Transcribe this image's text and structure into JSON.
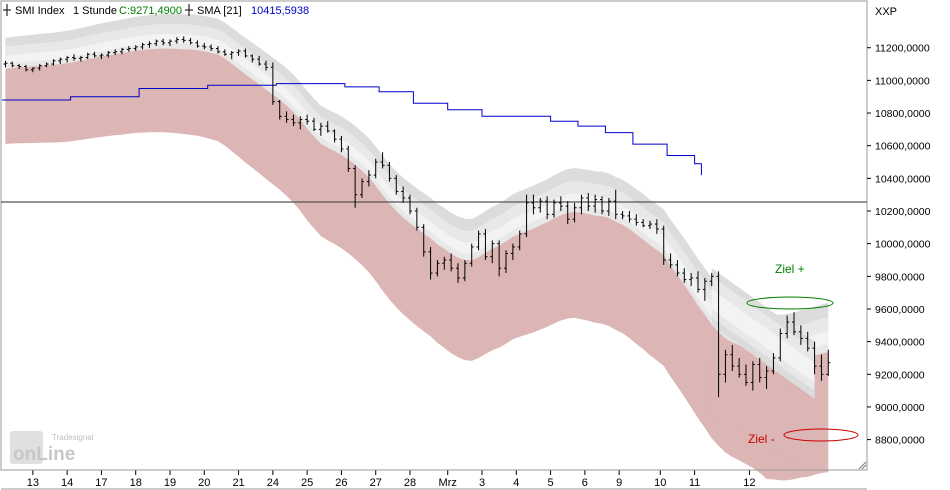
{
  "header": {
    "instrument": "SMI Index",
    "interval": "1 Stunde",
    "close_label": "C:9271,4900",
    "indicator": "SMA [21]",
    "indicator_value": "10415,5938",
    "symbol": "XXP"
  },
  "colors": {
    "close": "#008000",
    "sma": "#0000cc",
    "band_red": "#dcb5b5",
    "band_gray_outer": "#dcdcdc",
    "band_gray_mid": "#e8e8e8",
    "band_gray_inner": "#f3f3f3",
    "target_plus": "#008000",
    "target_minus": "#cc0000"
  },
  "watermark": {
    "brand_line1": "Tradesignal",
    "brand_line2": "onLine"
  },
  "chart_data": {
    "type": "bar",
    "title": "SMI Index 1 Stunde",
    "ylim": [
      8620,
      11480
    ],
    "xlim": [
      0,
      126
    ],
    "y_ticks": [
      "11200,0000",
      "11000,0000",
      "10800,0000",
      "10600,0000",
      "10400,0000",
      "10200,0000",
      "10000,0000",
      "9800,0000",
      "9600,0000",
      "9400,0000",
      "9200,0000",
      "9000,0000",
      "8800,0000"
    ],
    "y_tick_values": [
      11200,
      11000,
      10800,
      10600,
      10400,
      10200,
      10000,
      9800,
      9600,
      9400,
      9200,
      9000,
      8800
    ],
    "x_ticks": [
      {
        "label": "13",
        "x": 4.5
      },
      {
        "label": "14",
        "x": 9.5
      },
      {
        "label": "17",
        "x": 14.5
      },
      {
        "label": "18",
        "x": 19.5
      },
      {
        "label": "19",
        "x": 24.5
      },
      {
        "label": "20",
        "x": 29.5
      },
      {
        "label": "21",
        "x": 34.5
      },
      {
        "label": "24",
        "x": 39.5
      },
      {
        "label": "25",
        "x": 44.5
      },
      {
        "label": "26",
        "x": 49.5
      },
      {
        "label": "27",
        "x": 54.5
      },
      {
        "label": "28",
        "x": 59.5
      },
      {
        "label": "Mrz",
        "x": 65
      },
      {
        "label": "3",
        "x": 70
      },
      {
        "label": "4",
        "x": 75
      },
      {
        "label": "5",
        "x": 80
      },
      {
        "label": "6",
        "x": 85
      },
      {
        "label": "9",
        "x": 90
      },
      {
        "label": "10",
        "x": 96
      },
      {
        "label": "11",
        "x": 101
      },
      {
        "label": "12",
        "x": 109
      }
    ],
    "horizontal_line": 10255,
    "bars": [
      [
        11100,
        11120,
        11080,
        11105
      ],
      [
        11105,
        11115,
        11080,
        11090
      ],
      [
        11090,
        11100,
        11070,
        11085
      ],
      [
        11085,
        11095,
        11055,
        11065
      ],
      [
        11065,
        11080,
        11050,
        11075
      ],
      [
        11075,
        11100,
        11060,
        11090
      ],
      [
        11090,
        11110,
        11080,
        11100
      ],
      [
        11100,
        11130,
        11090,
        11120
      ],
      [
        11120,
        11140,
        11100,
        11130
      ],
      [
        11130,
        11150,
        11110,
        11140
      ],
      [
        11140,
        11160,
        11120,
        11135
      ],
      [
        11135,
        11150,
        11115,
        11140
      ],
      [
        11140,
        11170,
        11130,
        11160
      ],
      [
        11160,
        11175,
        11140,
        11150
      ],
      [
        11150,
        11165,
        11130,
        11155
      ],
      [
        11155,
        11180,
        11140,
        11170
      ],
      [
        11170,
        11190,
        11155,
        11175
      ],
      [
        11175,
        11200,
        11160,
        11190
      ],
      [
        11190,
        11210,
        11175,
        11195
      ],
      [
        11195,
        11215,
        11180,
        11205
      ],
      [
        11205,
        11230,
        11190,
        11220
      ],
      [
        11220,
        11240,
        11200,
        11225
      ],
      [
        11225,
        11250,
        11210,
        11240
      ],
      [
        11240,
        11255,
        11215,
        11230
      ],
      [
        11230,
        11250,
        11210,
        11240
      ],
      [
        11240,
        11265,
        11225,
        11250
      ],
      [
        11250,
        11270,
        11230,
        11245
      ],
      [
        11245,
        11260,
        11220,
        11230
      ],
      [
        11230,
        11245,
        11200,
        11210
      ],
      [
        11210,
        11230,
        11190,
        11205
      ],
      [
        11205,
        11220,
        11180,
        11195
      ],
      [
        11195,
        11210,
        11165,
        11175
      ],
      [
        11175,
        11190,
        11150,
        11160
      ],
      [
        11160,
        11180,
        11130,
        11170
      ],
      [
        11170,
        11190,
        11150,
        11180
      ],
      [
        11180,
        11195,
        11140,
        11150
      ],
      [
        11150,
        11160,
        11110,
        11130
      ],
      [
        11130,
        11150,
        11090,
        11100
      ],
      [
        11100,
        11120,
        11060,
        11080
      ],
      [
        11080,
        11110,
        10850,
        10870
      ],
      [
        10870,
        10880,
        10760,
        10780
      ],
      [
        10780,
        10810,
        10740,
        10760
      ],
      [
        10760,
        10790,
        10720,
        10740
      ],
      [
        10740,
        10780,
        10700,
        10760
      ],
      [
        10760,
        10790,
        10730,
        10750
      ],
      [
        10750,
        10770,
        10690,
        10700
      ],
      [
        10700,
        10740,
        10660,
        10720
      ],
      [
        10720,
        10750,
        10680,
        10690
      ],
      [
        10690,
        10700,
        10620,
        10640
      ],
      [
        10640,
        10660,
        10560,
        10580
      ],
      [
        10580,
        10600,
        10440,
        10460
      ],
      [
        10460,
        10480,
        10220,
        10300
      ],
      [
        10300,
        10400,
        10280,
        10380
      ],
      [
        10380,
        10450,
        10350,
        10420
      ],
      [
        10420,
        10520,
        10400,
        10500
      ],
      [
        10500,
        10560,
        10460,
        10480
      ],
      [
        10480,
        10500,
        10380,
        10400
      ],
      [
        10400,
        10420,
        10300,
        10320
      ],
      [
        10320,
        10350,
        10250,
        10280
      ],
      [
        10280,
        10300,
        10180,
        10200
      ],
      [
        10200,
        10220,
        10080,
        10100
      ],
      [
        10100,
        10120,
        9920,
        9950
      ],
      [
        9950,
        9980,
        9780,
        9820
      ],
      [
        9820,
        9900,
        9800,
        9880
      ],
      [
        9880,
        9920,
        9840,
        9900
      ],
      [
        9900,
        9940,
        9830,
        9850
      ],
      [
        9850,
        9880,
        9760,
        9790
      ],
      [
        9790,
        9900,
        9770,
        9880
      ],
      [
        9880,
        10000,
        9860,
        9980
      ],
      [
        9980,
        10080,
        9960,
        10060
      ],
      [
        10060,
        10090,
        9900,
        9920
      ],
      [
        9920,
        10020,
        9880,
        10000
      ],
      [
        10000,
        10020,
        9800,
        9850
      ],
      [
        9850,
        9960,
        9820,
        9940
      ],
      [
        9940,
        10000,
        9900,
        9980
      ],
      [
        9980,
        10080,
        9960,
        10060
      ],
      [
        10060,
        10300,
        10040,
        10250
      ],
      [
        10250,
        10300,
        10180,
        10220
      ],
      [
        10220,
        10280,
        10190,
        10260
      ],
      [
        10260,
        10290,
        10150,
        10180
      ],
      [
        10180,
        10270,
        10160,
        10250
      ],
      [
        10250,
        10290,
        10200,
        10230
      ],
      [
        10230,
        10260,
        10120,
        10150
      ],
      [
        10150,
        10250,
        10130,
        10220
      ],
      [
        10220,
        10300,
        10180,
        10280
      ],
      [
        10280,
        10310,
        10200,
        10230
      ],
      [
        10230,
        10300,
        10190,
        10270
      ],
      [
        10270,
        10290,
        10180,
        10200
      ],
      [
        10200,
        10280,
        10170,
        10260
      ],
      [
        10260,
        10330,
        10150,
        10180
      ],
      [
        10180,
        10200,
        10150,
        10170
      ],
      [
        10170,
        10200,
        10130,
        10150
      ],
      [
        10150,
        10180,
        10110,
        10130
      ],
      [
        10130,
        10150,
        10100,
        10110
      ],
      [
        10110,
        10140,
        10090,
        10120
      ],
      [
        10120,
        10150,
        10060,
        10090
      ],
      [
        10090,
        10110,
        9870,
        9900
      ],
      [
        9900,
        9940,
        9850,
        9870
      ],
      [
        9870,
        9900,
        9800,
        9820
      ],
      [
        9820,
        9850,
        9760,
        9780
      ],
      [
        9780,
        9820,
        9740,
        9790
      ],
      [
        9790,
        9830,
        9700,
        9720
      ],
      [
        9720,
        9790,
        9650,
        9770
      ],
      [
        9770,
        9820,
        9740,
        9800
      ],
      [
        9800,
        9830,
        9060,
        9200
      ],
      [
        9200,
        9350,
        9150,
        9320
      ],
      [
        9320,
        9380,
        9220,
        9250
      ],
      [
        9250,
        9300,
        9180,
        9200
      ],
      [
        9200,
        9260,
        9130,
        9150
      ],
      [
        9150,
        9280,
        9100,
        9260
      ],
      [
        9260,
        9300,
        9150,
        9180
      ],
      [
        9180,
        9250,
        9110,
        9220
      ],
      [
        9220,
        9330,
        9200,
        9300
      ],
      [
        9300,
        9480,
        9280,
        9450
      ],
      [
        9450,
        9560,
        9420,
        9520
      ],
      [
        9520,
        9580,
        9440,
        9460
      ],
      [
        9460,
        9500,
        9380,
        9420
      ],
      [
        9420,
        9460,
        9340,
        9360
      ],
      [
        9360,
        9400,
        9200,
        9250
      ],
      [
        9250,
        9320,
        9160,
        9200
      ],
      [
        9200,
        9350,
        9190,
        9271
      ]
    ],
    "sma_steps": [
      [
        0,
        10880
      ],
      [
        10,
        10900
      ],
      [
        20,
        10950
      ],
      [
        30,
        10970
      ],
      [
        40,
        10980
      ],
      [
        50,
        10960
      ],
      [
        55,
        10930
      ],
      [
        60,
        10860
      ],
      [
        65,
        10820
      ],
      [
        70,
        10780
      ],
      [
        80,
        10750
      ],
      [
        84,
        10720
      ],
      [
        88,
        10680
      ],
      [
        92,
        10610
      ],
      [
        97,
        10540
      ],
      [
        101,
        10490
      ],
      [
        102,
        10420
      ]
    ]
  },
  "annotations": {
    "target_plus_label": "Ziel +",
    "target_minus_label": "Ziel -"
  }
}
